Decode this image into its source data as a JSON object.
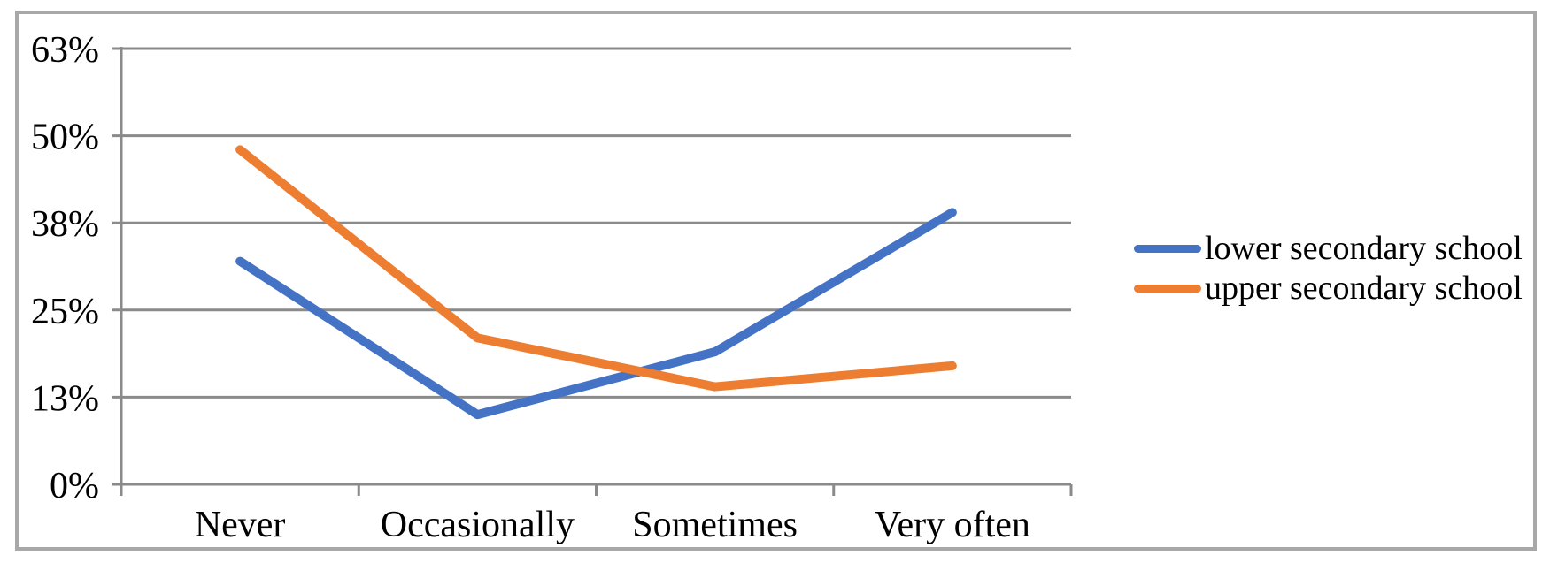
{
  "frame": {
    "border_color": "#a8a8a8",
    "background_color": "#ffffff"
  },
  "chart_data": {
    "type": "line",
    "title": "",
    "xlabel": "",
    "ylabel": "",
    "unit": "percent",
    "categories": [
      "Never",
      "Occasionally",
      "Sometimes",
      "Very often"
    ],
    "series": [
      {
        "name": "lower secondary school",
        "color": "#4472C4",
        "values": [
          32,
          10,
          19,
          39
        ]
      },
      {
        "name": "upper secondary school",
        "color": "#ED7D31",
        "values": [
          48,
          21,
          14,
          17
        ]
      }
    ],
    "y_axis": {
      "labels": [
        "0%",
        "13%",
        "25%",
        "38%",
        "50%",
        "63%"
      ],
      "values": [
        0,
        12.5,
        25,
        37.5,
        50,
        62.5
      ],
      "min": 0,
      "max": 62.5
    },
    "grid": "horizontal-on",
    "gridline_color": "#8a8a8a",
    "legend_position": "right",
    "legend_entries": [
      "lower secondary school",
      "upper secondary school"
    ]
  }
}
